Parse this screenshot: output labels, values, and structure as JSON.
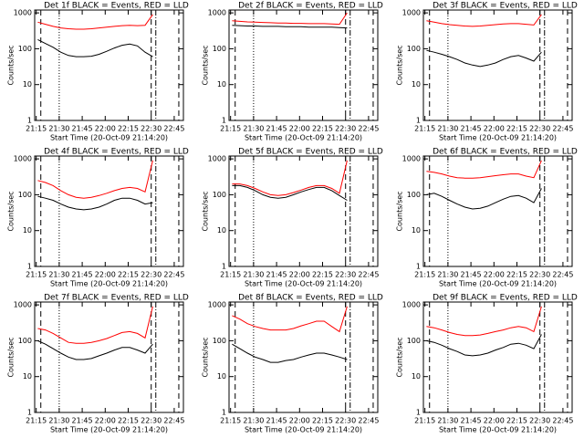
{
  "chart_data": [
    {
      "type": "line",
      "title": "Det 1f BLACK = Events, RED = LLD",
      "xlabel": "Start Time (20-Oct-09 21:14:20)",
      "ylabel": "Counts/sec",
      "log_scale": true,
      "x": [
        16,
        21,
        26,
        31,
        36,
        41,
        46,
        51,
        56,
        61,
        66,
        71,
        76,
        81,
        86,
        91
      ],
      "series": [
        {
          "color": "#000000",
          "values": [
            180,
            140,
            110,
            80,
            65,
            60,
            60,
            62,
            70,
            85,
            105,
            125,
            135,
            120,
            80,
            60
          ]
        },
        {
          "color": "#ff0000",
          "values": [
            550,
            480,
            420,
            380,
            360,
            350,
            350,
            360,
            380,
            400,
            420,
            440,
            450,
            440,
            450,
            900
          ]
        }
      ],
      "xlim": [
        14,
        111
      ],
      "ylim": [
        1,
        1200
      ],
      "yticks": [
        1,
        10,
        100,
        1000
      ],
      "xticks": [
        {
          "value": 15,
          "label": "21:15"
        },
        {
          "value": 30,
          "label": "21:30"
        },
        {
          "value": 45,
          "label": "21:45"
        },
        {
          "value": 60,
          "label": "22:00"
        },
        {
          "value": 75,
          "label": "22:15"
        },
        {
          "value": 90,
          "label": "22:30"
        },
        {
          "value": 105,
          "label": "22:45"
        }
      ],
      "markers": [
        {
          "x": 18,
          "style": "dashed"
        },
        {
          "x": 30,
          "style": "dotted"
        },
        {
          "x": 90,
          "style": "dashed"
        },
        {
          "x": 93,
          "style": "dashdot"
        },
        {
          "x": 108,
          "style": "dashed"
        }
      ]
    },
    {
      "type": "line",
      "title": "Det 2f BLACK = Events, RED = LLD",
      "xlabel": "Start Time (20-Oct-09 21:14:20)",
      "ylabel": "Counts/sec",
      "log_scale": true,
      "x": [
        16,
        21,
        26,
        31,
        36,
        41,
        46,
        51,
        56,
        61,
        66,
        71,
        76,
        81,
        86,
        91
      ],
      "series": [
        {
          "color": "#000000",
          "values": [
            450,
            440,
            430,
            430,
            420,
            420,
            420,
            410,
            410,
            410,
            400,
            400,
            400,
            400,
            390,
            380
          ]
        },
        {
          "color": "#ff0000",
          "values": [
            600,
            580,
            560,
            550,
            540,
            530,
            520,
            520,
            510,
            510,
            500,
            500,
            500,
            490,
            480,
            1000
          ]
        }
      ],
      "xlim": [
        14,
        111
      ],
      "ylim": [
        1,
        1200
      ],
      "yticks": [
        1,
        10,
        100,
        1000
      ],
      "xticks": [
        {
          "value": 15,
          "label": "21:15"
        },
        {
          "value": 30,
          "label": "21:30"
        },
        {
          "value": 45,
          "label": "21:45"
        },
        {
          "value": 60,
          "label": "22:00"
        },
        {
          "value": 75,
          "label": "22:15"
        },
        {
          "value": 90,
          "label": "22:30"
        },
        {
          "value": 105,
          "label": "22:45"
        }
      ],
      "markers": [
        {
          "x": 18,
          "style": "dashed"
        },
        {
          "x": 30,
          "style": "dotted"
        },
        {
          "x": 90,
          "style": "dashed"
        },
        {
          "x": 93,
          "style": "dashdot"
        },
        {
          "x": 108,
          "style": "dashed"
        }
      ]
    },
    {
      "type": "line",
      "title": "Det 3f BLACK = Events, RED = LLD",
      "xlabel": "Start Time (20-Oct-09 21:14:20)",
      "ylabel": "Counts/sec",
      "log_scale": true,
      "x": [
        16,
        21,
        26,
        31,
        36,
        41,
        46,
        51,
        56,
        61,
        66,
        71,
        76,
        81,
        86,
        91
      ],
      "series": [
        {
          "color": "#000000",
          "values": [
            90,
            80,
            70,
            60,
            50,
            40,
            35,
            32,
            35,
            40,
            50,
            60,
            65,
            55,
            45,
            80
          ]
        },
        {
          "color": "#ff0000",
          "values": [
            600,
            550,
            500,
            470,
            450,
            430,
            420,
            430,
            450,
            470,
            490,
            500,
            500,
            480,
            460,
            900
          ]
        }
      ],
      "xlim": [
        14,
        111
      ],
      "ylim": [
        1,
        1200
      ],
      "yticks": [
        1,
        10,
        100,
        1000
      ],
      "xticks": [
        {
          "value": 15,
          "label": "21:15"
        },
        {
          "value": 30,
          "label": "21:30"
        },
        {
          "value": 45,
          "label": "21:45"
        },
        {
          "value": 60,
          "label": "22:00"
        },
        {
          "value": 75,
          "label": "22:15"
        },
        {
          "value": 90,
          "label": "22:30"
        },
        {
          "value": 105,
          "label": "22:45"
        }
      ],
      "markers": [
        {
          "x": 18,
          "style": "dashed"
        },
        {
          "x": 30,
          "style": "dotted"
        },
        {
          "x": 90,
          "style": "dashed"
        },
        {
          "x": 93,
          "style": "dashdot"
        },
        {
          "x": 108,
          "style": "dashed"
        }
      ]
    },
    {
      "type": "line",
      "title": "Det 4f BLACK = Events, RED = LLD",
      "xlabel": "Start Time (20-Oct-09 21:14:20)",
      "ylabel": "Counts/sec",
      "log_scale": true,
      "x": [
        16,
        21,
        26,
        31,
        36,
        41,
        46,
        51,
        56,
        61,
        66,
        71,
        76,
        81,
        86,
        91
      ],
      "series": [
        {
          "color": "#000000",
          "values": [
            90,
            80,
            70,
            55,
            45,
            40,
            38,
            40,
            45,
            55,
            70,
            80,
            80,
            70,
            55,
            60
          ]
        },
        {
          "color": "#ff0000",
          "values": [
            250,
            220,
            180,
            130,
            100,
            85,
            80,
            85,
            95,
            110,
            130,
            150,
            160,
            150,
            120,
            900
          ]
        }
      ],
      "xlim": [
        14,
        111
      ],
      "ylim": [
        1,
        1200
      ],
      "yticks": [
        1,
        10,
        100,
        1000
      ],
      "xticks": [
        {
          "value": 15,
          "label": "21:15"
        },
        {
          "value": 30,
          "label": "21:30"
        },
        {
          "value": 45,
          "label": "21:45"
        },
        {
          "value": 60,
          "label": "22:00"
        },
        {
          "value": 75,
          "label": "22:15"
        },
        {
          "value": 90,
          "label": "22:30"
        },
        {
          "value": 105,
          "label": "22:45"
        }
      ],
      "markers": [
        {
          "x": 18,
          "style": "dashed"
        },
        {
          "x": 30,
          "style": "dotted"
        },
        {
          "x": 90,
          "style": "dashed"
        },
        {
          "x": 93,
          "style": "dashdot"
        },
        {
          "x": 108,
          "style": "dashed"
        }
      ]
    },
    {
      "type": "line",
      "title": "Det 5f BLACK = Events, RED = LLD",
      "xlabel": "Start Time (20-Oct-09 21:14:20)",
      "ylabel": "Counts/sec",
      "log_scale": true,
      "x": [
        16,
        21,
        26,
        31,
        36,
        41,
        46,
        51,
        56,
        61,
        66,
        71,
        76,
        81,
        86,
        91
      ],
      "series": [
        {
          "color": "#000000",
          "values": [
            180,
            180,
            160,
            130,
            100,
            85,
            80,
            85,
            100,
            120,
            140,
            160,
            160,
            130,
            95,
            70
          ]
        },
        {
          "color": "#ff0000",
          "values": [
            200,
            200,
            180,
            150,
            120,
            100,
            95,
            100,
            115,
            135,
            160,
            180,
            180,
            150,
            110,
            900
          ]
        }
      ],
      "xlim": [
        14,
        111
      ],
      "ylim": [
        1,
        1200
      ],
      "yticks": [
        1,
        10,
        100,
        1000
      ],
      "xticks": [
        {
          "value": 15,
          "label": "21:15"
        },
        {
          "value": 30,
          "label": "21:30"
        },
        {
          "value": 45,
          "label": "21:45"
        },
        {
          "value": 60,
          "label": "22:00"
        },
        {
          "value": 75,
          "label": "22:15"
        },
        {
          "value": 90,
          "label": "22:30"
        },
        {
          "value": 105,
          "label": "22:45"
        }
      ],
      "markers": [
        {
          "x": 18,
          "style": "dashed"
        },
        {
          "x": 30,
          "style": "dotted"
        },
        {
          "x": 90,
          "style": "dashed"
        },
        {
          "x": 93,
          "style": "dashdot"
        },
        {
          "x": 108,
          "style": "dashed"
        }
      ]
    },
    {
      "type": "line",
      "title": "Det 6f BLACK = Events, RED = LLD",
      "xlabel": "Start Time (20-Oct-09 21:14:20)",
      "ylabel": "Counts/sec",
      "log_scale": true,
      "x": [
        16,
        21,
        26,
        31,
        36,
        41,
        46,
        51,
        56,
        61,
        66,
        71,
        76,
        81,
        86,
        91
      ],
      "series": [
        {
          "color": "#000000",
          "values": [
            100,
            110,
            90,
            70,
            55,
            45,
            40,
            42,
            48,
            60,
            75,
            90,
            95,
            80,
            60,
            150
          ]
        },
        {
          "color": "#ff0000",
          "values": [
            450,
            420,
            380,
            330,
            300,
            290,
            290,
            300,
            320,
            340,
            360,
            380,
            380,
            330,
            300,
            900
          ]
        }
      ],
      "xlim": [
        14,
        111
      ],
      "ylim": [
        1,
        1200
      ],
      "yticks": [
        1,
        10,
        100,
        1000
      ],
      "xticks": [
        {
          "value": 15,
          "label": "21:15"
        },
        {
          "value": 30,
          "label": "21:30"
        },
        {
          "value": 45,
          "label": "21:45"
        },
        {
          "value": 60,
          "label": "22:00"
        },
        {
          "value": 75,
          "label": "22:15"
        },
        {
          "value": 90,
          "label": "22:30"
        },
        {
          "value": 105,
          "label": "22:45"
        }
      ],
      "markers": [
        {
          "x": 18,
          "style": "dashed"
        },
        {
          "x": 30,
          "style": "dotted"
        },
        {
          "x": 90,
          "style": "dashed"
        },
        {
          "x": 93,
          "style": "dashdot"
        },
        {
          "x": 108,
          "style": "dashed"
        }
      ]
    },
    {
      "type": "line",
      "title": "Det 7f BLACK = Events, RED = LLD",
      "xlabel": "Start Time (20-Oct-09 21:14:20)",
      "ylabel": "Counts/sec",
      "log_scale": true,
      "x": [
        16,
        21,
        26,
        31,
        36,
        41,
        46,
        51,
        56,
        61,
        66,
        71,
        76,
        81,
        86,
        91
      ],
      "series": [
        {
          "color": "#000000",
          "values": [
            100,
            80,
            60,
            45,
            35,
            30,
            30,
            32,
            38,
            45,
            55,
            65,
            65,
            55,
            45,
            80
          ]
        },
        {
          "color": "#ff0000",
          "values": [
            220,
            200,
            160,
            120,
            90,
            85,
            85,
            90,
            100,
            115,
            140,
            170,
            180,
            160,
            120,
            900
          ]
        }
      ],
      "xlim": [
        14,
        111
      ],
      "ylim": [
        1,
        1200
      ],
      "yticks": [
        1,
        10,
        100,
        1000
      ],
      "xticks": [
        {
          "value": 15,
          "label": "21:15"
        },
        {
          "value": 30,
          "label": "21:30"
        },
        {
          "value": 45,
          "label": "21:45"
        },
        {
          "value": 60,
          "label": "22:00"
        },
        {
          "value": 75,
          "label": "22:15"
        },
        {
          "value": 90,
          "label": "22:30"
        },
        {
          "value": 105,
          "label": "22:45"
        }
      ],
      "markers": [
        {
          "x": 18,
          "style": "dashed"
        },
        {
          "x": 30,
          "style": "dotted"
        },
        {
          "x": 90,
          "style": "dashed"
        },
        {
          "x": 93,
          "style": "dashdot"
        },
        {
          "x": 108,
          "style": "dashed"
        }
      ]
    },
    {
      "type": "line",
      "title": "Det 8f BLACK = Events, RED = LLD",
      "xlabel": "Start Time (20-Oct-09 21:14:20)",
      "ylabel": "Counts/sec",
      "log_scale": true,
      "x": [
        16,
        21,
        26,
        31,
        36,
        41,
        46,
        51,
        56,
        61,
        66,
        71,
        76,
        81,
        86,
        91
      ],
      "series": [
        {
          "color": "#000000",
          "values": [
            80,
            60,
            45,
            35,
            30,
            25,
            25,
            28,
            30,
            35,
            40,
            45,
            45,
            40,
            35,
            30
          ]
        },
        {
          "color": "#ff0000",
          "values": [
            500,
            400,
            300,
            250,
            220,
            200,
            200,
            200,
            220,
            260,
            300,
            350,
            350,
            250,
            180,
            900
          ]
        }
      ],
      "xlim": [
        14,
        111
      ],
      "ylim": [
        1,
        1200
      ],
      "yticks": [
        1,
        10,
        100,
        1000
      ],
      "xticks": [
        {
          "value": 15,
          "label": "21:15"
        },
        {
          "value": 30,
          "label": "21:30"
        },
        {
          "value": 45,
          "label": "21:45"
        },
        {
          "value": 60,
          "label": "22:00"
        },
        {
          "value": 75,
          "label": "22:15"
        },
        {
          "value": 90,
          "label": "22:30"
        },
        {
          "value": 105,
          "label": "22:45"
        }
      ],
      "markers": [
        {
          "x": 18,
          "style": "dashed"
        },
        {
          "x": 30,
          "style": "dotted"
        },
        {
          "x": 90,
          "style": "dashed"
        },
        {
          "x": 93,
          "style": "dashdot"
        },
        {
          "x": 108,
          "style": "dashed"
        }
      ]
    },
    {
      "type": "line",
      "title": "Det 9f BLACK = Events, RED = LLD",
      "xlabel": "Start Time (20-Oct-09 21:14:20)",
      "ylabel": "Counts/sec",
      "log_scale": true,
      "x": [
        16,
        21,
        26,
        31,
        36,
        41,
        46,
        51,
        56,
        61,
        66,
        71,
        76,
        81,
        86,
        91
      ],
      "series": [
        {
          "color": "#000000",
          "values": [
            100,
            90,
            75,
            60,
            50,
            40,
            38,
            40,
            45,
            55,
            65,
            80,
            85,
            75,
            60,
            150
          ]
        },
        {
          "color": "#ff0000",
          "values": [
            250,
            230,
            200,
            170,
            150,
            140,
            140,
            145,
            160,
            180,
            200,
            230,
            250,
            230,
            180,
            900
          ]
        }
      ],
      "xlim": [
        14,
        111
      ],
      "ylim": [
        1,
        1200
      ],
      "yticks": [
        1,
        10,
        100,
        1000
      ],
      "xticks": [
        {
          "value": 15,
          "label": "21:15"
        },
        {
          "value": 30,
          "label": "21:30"
        },
        {
          "value": 45,
          "label": "21:45"
        },
        {
          "value": 60,
          "label": "22:00"
        },
        {
          "value": 75,
          "label": "22:15"
        },
        {
          "value": 90,
          "label": "22:30"
        },
        {
          "value": 105,
          "label": "22:45"
        }
      ],
      "markers": [
        {
          "x": 18,
          "style": "dashed"
        },
        {
          "x": 30,
          "style": "dotted"
        },
        {
          "x": 90,
          "style": "dashed"
        },
        {
          "x": 93,
          "style": "dashdot"
        },
        {
          "x": 108,
          "style": "dashed"
        }
      ]
    }
  ]
}
